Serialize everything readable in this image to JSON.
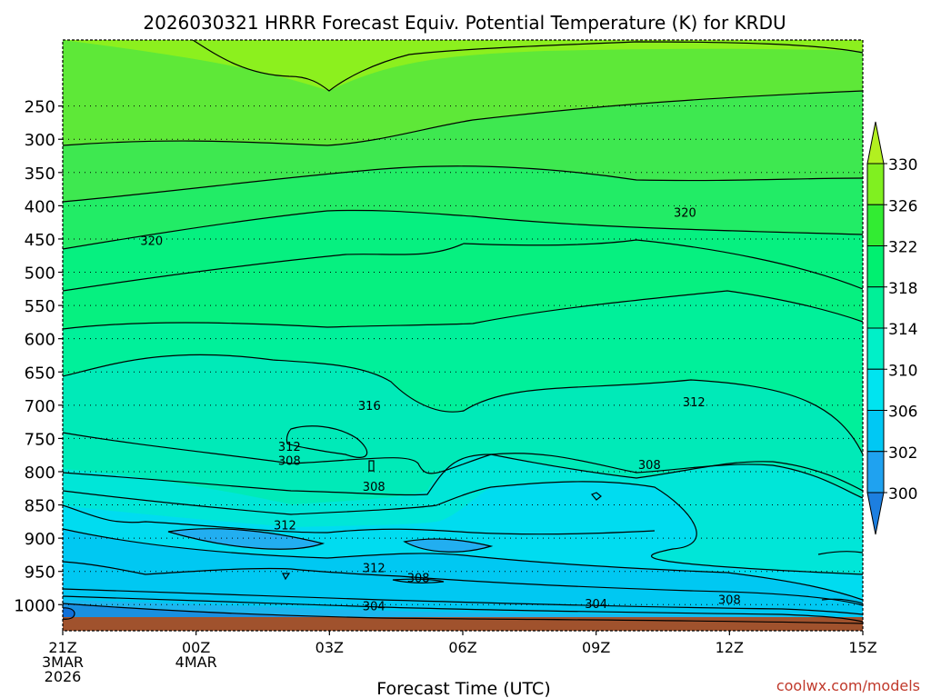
{
  "chart_data": {
    "type": "contour",
    "title": "2026030321 HRRR Forecast Equiv. Potential Temperature (K) for KRDU",
    "xlabel": "Forecast Time (UTC)",
    "ylabel": "",
    "credit": "coolwx.com/models",
    "x_ticks": [
      {
        "hour": 0,
        "lines": [
          "21Z",
          "3MAR",
          "2026"
        ]
      },
      {
        "hour": 3,
        "lines": [
          "00Z",
          "4MAR"
        ]
      },
      {
        "hour": 6,
        "lines": [
          "03Z"
        ]
      },
      {
        "hour": 9,
        "lines": [
          "06Z"
        ]
      },
      {
        "hour": 12,
        "lines": [
          "09Z"
        ]
      },
      {
        "hour": 15,
        "lines": [
          "12Z"
        ]
      },
      {
        "hour": 18,
        "lines": [
          "15Z"
        ]
      }
    ],
    "xlim": [
      0,
      18
    ],
    "ylim": [
      1025,
      150
    ],
    "y_ticks": [
      250,
      300,
      350,
      400,
      450,
      500,
      550,
      600,
      650,
      700,
      750,
      800,
      850,
      900,
      950,
      1000
    ],
    "y_tick_labels": [
      "250",
      "300",
      "350",
      "400",
      "450",
      "500",
      "550",
      "600",
      "650",
      "700",
      "750",
      "800",
      "850",
      "900",
      "950",
      "1000"
    ],
    "grid": true,
    "colorbar": {
      "labels": [
        "330",
        "326",
        "322",
        "318",
        "314",
        "310",
        "306",
        "302",
        "300"
      ],
      "levels": [
        300,
        302,
        306,
        310,
        314,
        318,
        322,
        326,
        330
      ],
      "colors": [
        "#1d7fe0",
        "#1fa2f0",
        "#00c8f4",
        "#00e4f0",
        "#00f0c8",
        "#00f098",
        "#00f070",
        "#32ec32",
        "#80f020",
        "#b2f020"
      ]
    },
    "contour_labels": [
      {
        "text": "320",
        "hour": 2.0,
        "p": 452
      },
      {
        "text": "320",
        "hour": 14.0,
        "p": 410
      },
      {
        "text": "316",
        "hour": 6.9,
        "p": 700
      },
      {
        "text": "312",
        "hour": 5.1,
        "p": 762
      },
      {
        "text": "308",
        "hour": 5.1,
        "p": 783
      },
      {
        "text": "312",
        "hour": 14.2,
        "p": 695
      },
      {
        "text": "308",
        "hour": 7.0,
        "p": 822
      },
      {
        "text": "308",
        "hour": 13.2,
        "p": 789
      },
      {
        "text": "312",
        "hour": 5.0,
        "p": 880
      },
      {
        "text": "312",
        "hour": 7.0,
        "p": 944
      },
      {
        "text": "308",
        "hour": 8.0,
        "p": 959
      },
      {
        "text": "304",
        "hour": 7.0,
        "p": 1002
      },
      {
        "text": "304",
        "hour": 12.0,
        "p": 998
      },
      {
        "text": "308",
        "hour": 15.0,
        "p": 992
      }
    ],
    "ground_level_hpa": 1010
  }
}
